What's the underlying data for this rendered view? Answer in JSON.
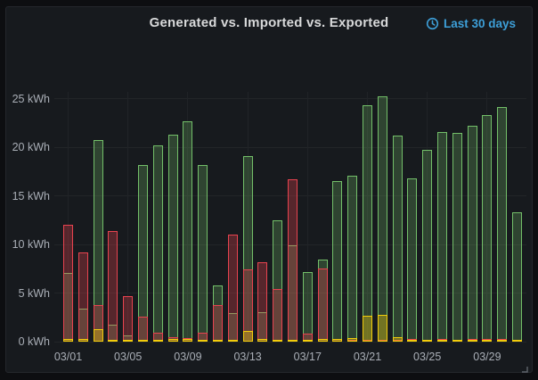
{
  "panel": {
    "title": "Generated vs. Imported vs. Exported",
    "time_range": {
      "label": "Last 30 days",
      "icon": "clock-icon"
    },
    "colors": {
      "outer_background": "#0d0e11",
      "panel_background": "#171a1e",
      "panel_border": "#24272c",
      "title_text": "#d8d9da",
      "axis_text": "#a9aeb6",
      "grid": "#222528",
      "time_range_accent": "#3d9fd8"
    },
    "resize_handle_icon": "diagonal-resize-icon"
  },
  "chart_data": {
    "type": "bar",
    "title": "Generated vs. Imported vs. Exported",
    "unit": "kWh",
    "xlabel": "",
    "ylabel": "",
    "ylim": [
      0,
      26.5
    ],
    "grid": true,
    "legend_position": "none",
    "bar_render_style": "overlaid semi-transparent fills with solid colored borders",
    "y_ticks": [
      0,
      5,
      10,
      15,
      20,
      25
    ],
    "y_tick_labels": [
      "0 kWh",
      "5 kWh",
      "10 kWh",
      "15 kWh",
      "20 kWh",
      "25 kWh"
    ],
    "x_tick_every": 4,
    "x_tick_labels": [
      "03/01",
      "03/05",
      "03/09",
      "03/13",
      "03/17",
      "03/21",
      "03/25",
      "03/29"
    ],
    "categories": [
      "03/01",
      "03/02",
      "03/03",
      "03/04",
      "03/05",
      "03/06",
      "03/07",
      "03/08",
      "03/09",
      "03/10",
      "03/11",
      "03/12",
      "03/13",
      "03/14",
      "03/15",
      "03/16",
      "03/17",
      "03/18",
      "03/19",
      "03/20",
      "03/21",
      "03/22",
      "03/23",
      "03/24",
      "03/25",
      "03/26",
      "03/27",
      "03/28",
      "03/29",
      "03/30",
      "03/31"
    ],
    "series": [
      {
        "name": "Generated",
        "color": "#73bf69",
        "values": [
          7.1,
          3.4,
          20.7,
          1.7,
          0.6,
          18.2,
          20.2,
          21.3,
          22.7,
          18.2,
          5.8,
          2.9,
          19.1,
          3.0,
          12.5,
          9.9,
          7.2,
          8.4,
          16.5,
          17.1,
          24.3,
          25.2,
          21.2,
          16.8,
          19.7,
          21.6,
          21.5,
          22.2,
          23.3,
          24.1,
          13.3
        ]
      },
      {
        "name": "Imported",
        "color": "#e8434f",
        "values": [
          12.0,
          9.2,
          3.8,
          11.4,
          4.7,
          2.6,
          0.9,
          0.5,
          0.4,
          0.9,
          3.8,
          11.0,
          7.4,
          8.2,
          5.4,
          16.7,
          0.8,
          7.5,
          0.3,
          0.2,
          0.2,
          0.2,
          0.2,
          0.3,
          0.2,
          0.3,
          0.2,
          0.3,
          0.3,
          0.3,
          0.2
        ]
      },
      {
        "name": "Exported",
        "color": "#f2cc0c",
        "values": [
          0.25,
          0.3,
          1.25,
          0.2,
          0.15,
          0.2,
          0.2,
          0.3,
          0.3,
          0.2,
          0.2,
          0.15,
          1.1,
          0.3,
          0.2,
          0.2,
          0.1,
          0.3,
          0.3,
          0.4,
          2.7,
          2.75,
          0.5,
          0.2,
          0.2,
          0.15,
          0.2,
          0.2,
          0.2,
          0.2,
          0.2
        ]
      }
    ]
  }
}
